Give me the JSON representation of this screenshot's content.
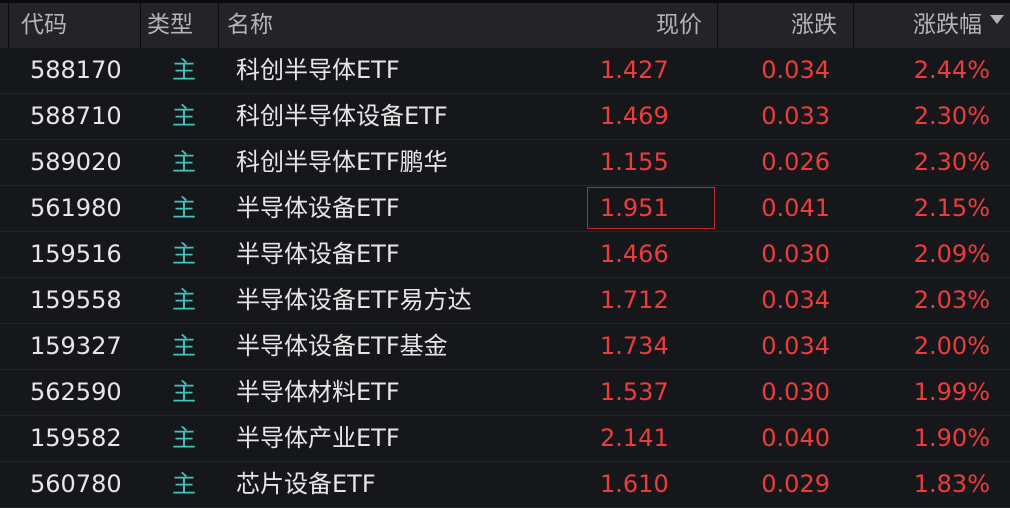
{
  "columns": {
    "code": "代码",
    "type": "类型",
    "name": "名称",
    "price": "现价",
    "change": "涨跌",
    "pct": "涨跌幅"
  },
  "sort": {
    "column": "涨跌幅",
    "direction": "descending",
    "icon": "triangle-down-icon"
  },
  "colors": {
    "up": "#ee3b3b",
    "type": "#3ec4bd",
    "text": "#e6e6e6",
    "background": "#16171b",
    "header": "#232328"
  },
  "selected_row": 3,
  "rows": [
    {
      "code": "588170",
      "type": "主",
      "name": "科创半导体ETF",
      "price": "1.427",
      "change": "0.034",
      "pct": "2.44%"
    },
    {
      "code": "588710",
      "type": "主",
      "name": "科创半导体设备ETF",
      "price": "1.469",
      "change": "0.033",
      "pct": "2.30%"
    },
    {
      "code": "589020",
      "type": "主",
      "name": "科创半导体ETF鹏华",
      "price": "1.155",
      "change": "0.026",
      "pct": "2.30%"
    },
    {
      "code": "561980",
      "type": "主",
      "name": "半导体设备ETF",
      "price": "1.951",
      "change": "0.041",
      "pct": "2.15%"
    },
    {
      "code": "159516",
      "type": "主",
      "name": "半导体设备ETF",
      "price": "1.466",
      "change": "0.030",
      "pct": "2.09%"
    },
    {
      "code": "159558",
      "type": "主",
      "name": "半导体设备ETF易方达",
      "price": "1.712",
      "change": "0.034",
      "pct": "2.03%"
    },
    {
      "code": "159327",
      "type": "主",
      "name": "半导体设备ETF基金",
      "price": "1.734",
      "change": "0.034",
      "pct": "2.00%"
    },
    {
      "code": "562590",
      "type": "主",
      "name": "半导体材料ETF",
      "price": "1.537",
      "change": "0.030",
      "pct": "1.99%"
    },
    {
      "code": "159582",
      "type": "主",
      "name": "半导体产业ETF",
      "price": "2.141",
      "change": "0.040",
      "pct": "1.90%"
    },
    {
      "code": "560780",
      "type": "主",
      "name": "芯片设备ETF",
      "price": "1.610",
      "change": "0.029",
      "pct": "1.83%"
    }
  ]
}
